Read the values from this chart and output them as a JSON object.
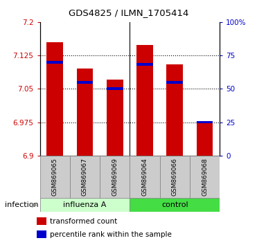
{
  "title": "GDS4825 / ILMN_1705414",
  "samples": [
    "GSM869065",
    "GSM869067",
    "GSM869069",
    "GSM869064",
    "GSM869066",
    "GSM869068"
  ],
  "group_labels": [
    "influenza A",
    "control"
  ],
  "red_values": [
    7.155,
    7.095,
    7.07,
    7.148,
    7.105,
    6.975
  ],
  "blue_values": [
    7.11,
    7.065,
    7.05,
    7.105,
    7.065,
    6.975
  ],
  "y_min": 6.9,
  "y_max": 7.2,
  "y_ticks": [
    6.9,
    6.975,
    7.05,
    7.125,
    7.2
  ],
  "y_tick_labels": [
    "6.9",
    "6.975",
    "7.05",
    "7.125",
    "7.2"
  ],
  "right_y_ticks_pct": [
    0,
    25,
    50,
    75,
    100
  ],
  "right_y_tick_labels": [
    "0",
    "25",
    "50",
    "75",
    "100%"
  ],
  "left_color": "#cc0000",
  "right_color": "#0000cc",
  "bar_color": "#cc0000",
  "blue_marker_color": "#0000cc",
  "bar_width": 0.55,
  "influenza_color": "#ccffcc",
  "control_color": "#44dd44",
  "infection_label": "infection",
  "legend_red_label": "transformed count",
  "legend_blue_label": "percentile rank within the sample"
}
